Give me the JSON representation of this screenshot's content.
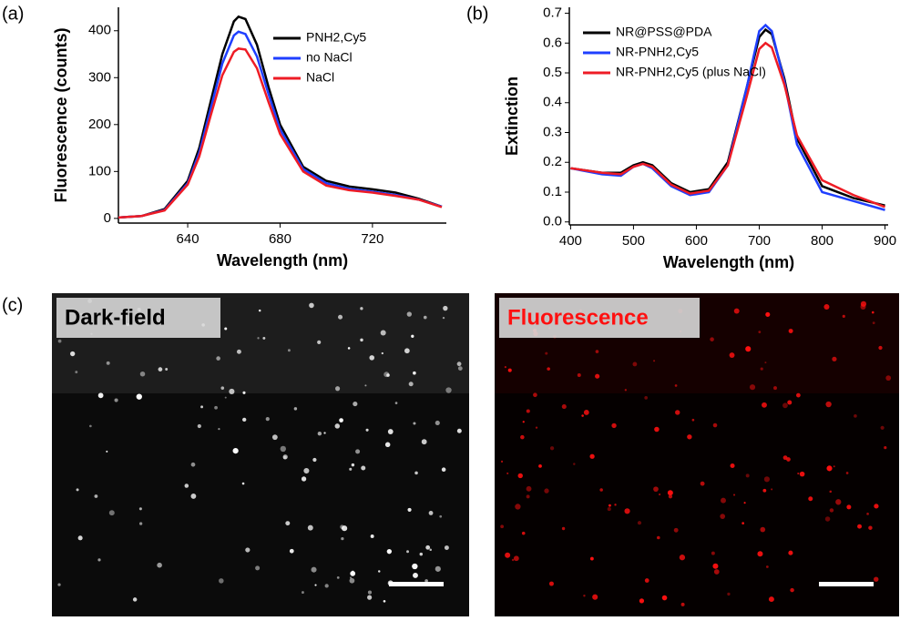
{
  "chart_data": [
    {
      "type": "line",
      "panel": "(a)",
      "xlabel": "Wavelength (nm)",
      "ylabel": "Fluorescence (counts)",
      "x": [
        610,
        620,
        630,
        640,
        645,
        650,
        655,
        660,
        662,
        665,
        670,
        675,
        680,
        690,
        700,
        710,
        720,
        730,
        740,
        750
      ],
      "series": [
        {
          "name": "PNH2,Cy5",
          "color": "#000000",
          "values": [
            2,
            5,
            20,
            80,
            150,
            250,
            350,
            420,
            430,
            425,
            370,
            280,
            200,
            110,
            80,
            68,
            62,
            55,
            42,
            25
          ]
        },
        {
          "name": "no NaCl",
          "color": "#1f3fff",
          "values": [
            2,
            5,
            18,
            75,
            140,
            235,
            330,
            390,
            398,
            393,
            345,
            265,
            190,
            105,
            75,
            63,
            57,
            50,
            40,
            25
          ]
        },
        {
          "name": "NaCl",
          "color": "#ee1c25",
          "values": [
            2,
            5,
            17,
            72,
            132,
            220,
            305,
            355,
            362,
            360,
            320,
            248,
            180,
            100,
            70,
            60,
            55,
            48,
            40,
            24
          ]
        }
      ],
      "xlim": [
        610,
        752
      ],
      "ylim": [
        -10,
        450
      ],
      "xticks": [
        640,
        680,
        720
      ],
      "yticks": [
        0,
        100,
        200,
        300,
        400
      ]
    },
    {
      "type": "line",
      "panel": "(b)",
      "xlabel": "Wavelength (nm)",
      "ylabel": "Extinction",
      "x": [
        400,
        450,
        480,
        500,
        515,
        530,
        560,
        590,
        620,
        650,
        680,
        700,
        710,
        720,
        740,
        760,
        800,
        850,
        900
      ],
      "series": [
        {
          "name": "NR@PSS@PDA",
          "color": "#000000",
          "values": [
            0.18,
            0.165,
            0.165,
            0.19,
            0.2,
            0.19,
            0.13,
            0.1,
            0.11,
            0.2,
            0.45,
            0.62,
            0.645,
            0.63,
            0.48,
            0.28,
            0.12,
            0.08,
            0.055
          ]
        },
        {
          "name": "NR-PNH2,Cy5",
          "color": "#1f3fff",
          "values": [
            0.18,
            0.16,
            0.155,
            0.185,
            0.195,
            0.18,
            0.12,
            0.09,
            0.1,
            0.19,
            0.45,
            0.64,
            0.66,
            0.64,
            0.47,
            0.26,
            0.1,
            0.07,
            0.04
          ]
        },
        {
          "name": "NR-PNH2,Cy5 (plus NaCl)",
          "color": "#ee1c25",
          "values": [
            0.18,
            0.165,
            0.16,
            0.185,
            0.195,
            0.185,
            0.125,
            0.095,
            0.105,
            0.19,
            0.42,
            0.58,
            0.6,
            0.585,
            0.46,
            0.29,
            0.14,
            0.09,
            0.05
          ]
        }
      ],
      "xlim": [
        398,
        905
      ],
      "ylim": [
        -0.01,
        0.72
      ],
      "xticks": [
        400,
        500,
        600,
        700,
        800,
        900
      ],
      "yticks": [
        {
          "value": 0,
          "label": "0.0"
        },
        {
          "value": 0.1,
          "label": "0.1"
        },
        {
          "value": 0.2,
          "label": "0.2"
        },
        {
          "value": 0.3,
          "label": "0.3"
        },
        {
          "value": 0.4,
          "label": "0.4"
        },
        {
          "value": 0.5,
          "label": "0.5"
        },
        {
          "value": 0.6,
          "label": "0.6"
        },
        {
          "value": 0.7,
          "label": "0.7"
        }
      ]
    }
  ],
  "panel_c": {
    "label": "(c)",
    "images": [
      {
        "title": "Dark-field",
        "color": "#ffffff"
      },
      {
        "title": "Fluorescence",
        "color": "#ff1010"
      }
    ]
  }
}
